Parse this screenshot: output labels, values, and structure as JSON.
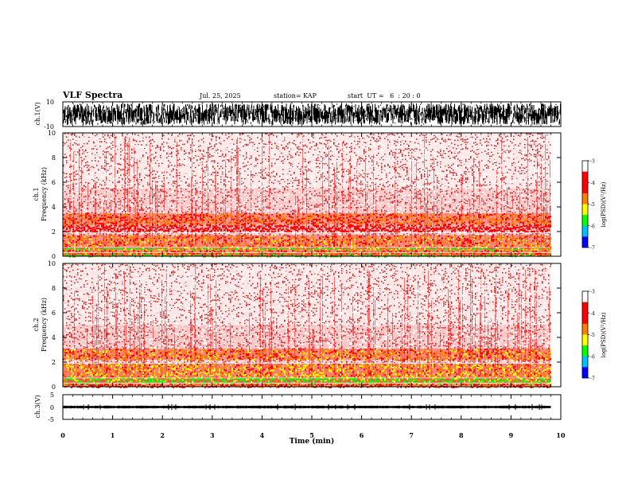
{
  "header": {
    "title": "VLF Spectra",
    "date": "Jul. 25, 2025",
    "station": "station= KAP",
    "start": "start  UT =   6  : 20 : 0"
  },
  "chart_data": [
    {
      "type": "line",
      "name": "ch1-waveform",
      "ylabel": "ch.1(V)",
      "ylim": [
        -10,
        10
      ],
      "yticks": [
        "10",
        "-10"
      ],
      "xlim": [
        0,
        10
      ]
    },
    {
      "type": "heatmap",
      "name": "ch1-spectrogram",
      "ylabel_line1": "ch.1",
      "ylabel_line2": "Frequency (kHz)",
      "ylim": [
        0,
        10
      ],
      "yticks": [
        "0",
        "2",
        "4",
        "6",
        "8",
        "10"
      ],
      "xlim": [
        0,
        10
      ],
      "data_end_min": 9.8,
      "colorbar": {
        "label": "log(PSD)(V²/Hz)",
        "range": [
          -7,
          -3
        ],
        "ticks": [
          "-3",
          "-4",
          "-5",
          "-6",
          "-7"
        ]
      },
      "bands_khz": [
        {
          "from": 0.0,
          "to": 0.25,
          "level": 0.95
        },
        {
          "from": 0.25,
          "to": 0.55,
          "level": 0.55
        },
        {
          "from": 0.55,
          "to": 0.75,
          "level": 0.95
        },
        {
          "from": 0.75,
          "to": 1.75,
          "level": 0.6
        },
        {
          "from": 1.75,
          "to": 1.95,
          "level": 0.3
        },
        {
          "from": 2.0,
          "to": 2.6,
          "level": 0.4
        },
        {
          "from": 2.6,
          "to": 3.5,
          "level": 0.55
        },
        {
          "from": 3.5,
          "to": 5.5,
          "level": 0.28
        },
        {
          "from": 5.5,
          "to": 10.0,
          "level": 0.12
        }
      ]
    },
    {
      "type": "heatmap",
      "name": "ch2-spectrogram",
      "ylabel_line1": "ch.2",
      "ylabel_line2": "Frequency (kHz)",
      "ylim": [
        0,
        10
      ],
      "yticks": [
        "0",
        "2",
        "4",
        "6",
        "8",
        "10"
      ],
      "xlim": [
        0,
        10
      ],
      "data_end_min": 9.8,
      "colorbar": {
        "label": "log(PSD)(V²/Hz)",
        "range": [
          -7,
          -3
        ],
        "ticks": [
          "-3",
          "-4",
          "-5",
          "-6",
          "-7"
        ]
      },
      "bands_khz": [
        {
          "from": 0.0,
          "to": 0.3,
          "level": 0.5
        },
        {
          "from": 0.3,
          "to": 0.8,
          "level": 0.95
        },
        {
          "from": 0.8,
          "to": 1.9,
          "level": 0.68
        },
        {
          "from": 1.9,
          "to": 2.2,
          "level": 0.32
        },
        {
          "from": 2.2,
          "to": 3.1,
          "level": 0.6
        },
        {
          "from": 3.1,
          "to": 5.0,
          "level": 0.3
        },
        {
          "from": 5.0,
          "to": 10.0,
          "level": 0.13
        }
      ]
    },
    {
      "type": "line",
      "name": "ch3-waveform",
      "ylabel": "ch.3(V)",
      "ylim": [
        -5,
        5
      ],
      "yticks": [
        "5",
        "0",
        "-5"
      ],
      "xlim": [
        0,
        10
      ],
      "signal_amplitude_v": 0.6
    }
  ],
  "xaxis": {
    "label": "Time (min)",
    "ticks": [
      "0",
      "1",
      "2",
      "3",
      "4",
      "5",
      "6",
      "7",
      "8",
      "9",
      "10"
    ]
  },
  "colors": {
    "white": "#ffffff",
    "red": "#ff0000",
    "orange": "#ff7f00",
    "yellow": "#ffff00",
    "green": "#00ff00",
    "cyan": "#00c0ff",
    "blue": "#0000ff",
    "navy": "#000080"
  }
}
